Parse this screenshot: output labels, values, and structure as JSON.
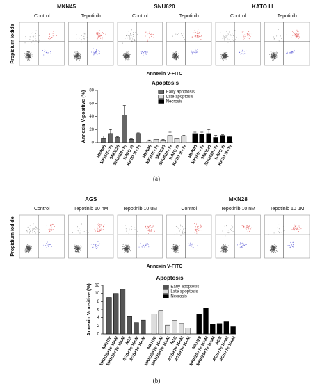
{
  "chart_data": [
    {
      "type": "bar",
      "title": "Apoptosis",
      "y_label": "Annexin V-positive (%)",
      "categories": [
        "MKN45",
        "MKN45+Te",
        "SNU620",
        "SNU620+Te",
        "KATO III",
        "KATO III+Te"
      ],
      "series": [
        {
          "name": "Early apoptosis",
          "color": "#666666",
          "values": [
            6,
            14,
            8,
            42,
            5,
            14
          ],
          "errors": [
            4,
            6,
            1,
            15,
            1,
            1
          ]
        },
        {
          "name": "Late apoptosis",
          "color": "#dddddd",
          "values": [
            3,
            5,
            4,
            11,
            6,
            10
          ],
          "errors": [
            1,
            2,
            1,
            5,
            1,
            1
          ]
        },
        {
          "name": "Necrosis",
          "color": "#000000",
          "values": [
            14,
            13,
            14,
            8,
            11,
            9
          ],
          "errors": [
            2,
            3,
            6,
            3,
            1,
            1
          ]
        }
      ],
      "ylim": [
        0,
        80
      ],
      "yticks": [
        0,
        20,
        40,
        60,
        80
      ]
    },
    {
      "type": "bar",
      "title": "Apoptosis",
      "y_label": "Annexin V-positive (%)",
      "categories": [
        "MKN28",
        "MKN28+Te 10nM",
        "MKN28+Te 10uM",
        "AGS",
        "AGS+Te 10nM",
        "AGS+Te 10uM"
      ],
      "series": [
        {
          "name": "Early apoptosis",
          "color": "#555555",
          "values": [
            9,
            10,
            11,
            4.4,
            2.8,
            3.4
          ]
        },
        {
          "name": "Late apoptosis",
          "color": "#dddddd",
          "values": [
            4.9,
            5.7,
            2.2,
            3.3,
            2.6,
            1.5
          ]
        },
        {
          "name": "Necrosis",
          "color": "#000000",
          "values": [
            4.8,
            6.3,
            2.5,
            2.6,
            3.0,
            1.8
          ]
        }
      ],
      "ylim": [
        0,
        12
      ],
      "yticks": [
        0,
        2,
        4,
        6,
        8,
        10,
        12
      ]
    }
  ],
  "flow_a": {
    "y_label": "Propidium iodide",
    "x_label": "Annexin V-FITC",
    "panel_label": "(a)",
    "groups": [
      {
        "name": "MKN45",
        "conditions": [
          "Control",
          "Tepotinib"
        ]
      },
      {
        "name": "SNU620",
        "conditions": [
          "Control",
          "Tepotinib"
        ]
      },
      {
        "name": "KATO III",
        "conditions": [
          "Control",
          "Tepotinib"
        ]
      }
    ]
  },
  "flow_b": {
    "y_label": "Propidium iodide",
    "x_label": "Annexin V-FITC",
    "panel_label": "(b)",
    "groups": [
      {
        "name": "AGS",
        "conditions": [
          "Control",
          "Tepotinib 10 nM",
          "Tepotinib 10 uM"
        ]
      },
      {
        "name": "MKN28",
        "conditions": [
          "Control",
          "Tepotinib 10 nM",
          "Tepotinib 10 uM"
        ]
      }
    ]
  }
}
